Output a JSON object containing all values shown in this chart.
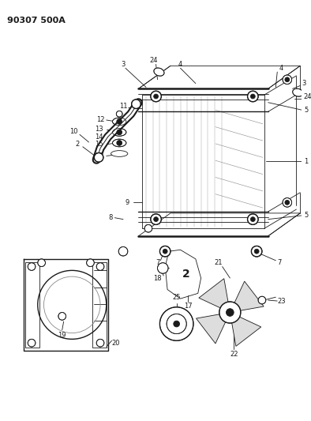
{
  "title": "90307 500A",
  "bg": "#ffffff",
  "lc": "#1a1a1a",
  "fig_w": 3.94,
  "fig_h": 5.33,
  "dpi": 100,
  "label_fs": 6,
  "title_fs": 8
}
